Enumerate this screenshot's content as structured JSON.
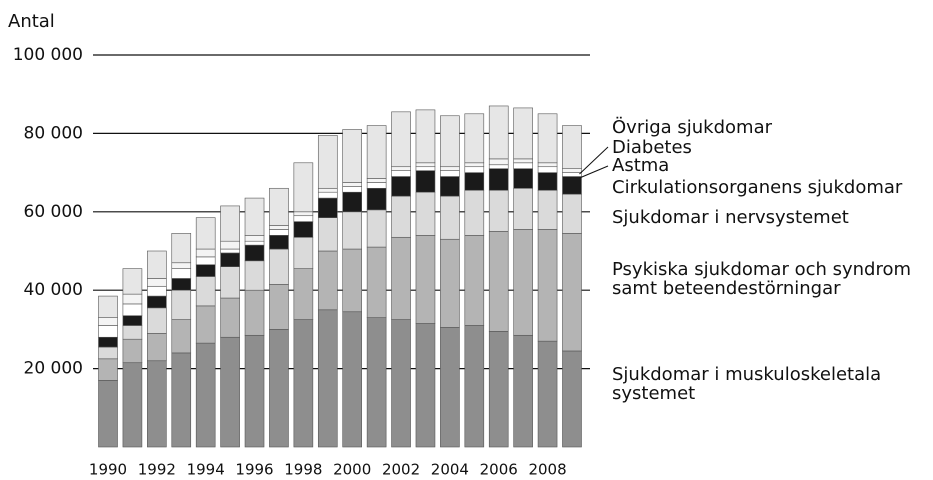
{
  "chart_data": {
    "type": "bar",
    "stacked": true,
    "y_label": "Antal",
    "categories": [
      "1990",
      null,
      "1992",
      null,
      "1994",
      null,
      "1996",
      null,
      "1998",
      null,
      "2000",
      null,
      "2002",
      null,
      "2004",
      null,
      "2006",
      null,
      "2008",
      null
    ],
    "series": [
      {
        "name": "Sjukdomar i muskuloskeletala systemet",
        "color": "#8e8e8e",
        "values": [
          17000,
          21500,
          22000,
          24000,
          26500,
          28000,
          28500,
          30000,
          32500,
          35000,
          34500,
          33000,
          32500,
          31500,
          30500,
          31000,
          29500,
          28500,
          27000,
          24500
        ]
      },
      {
        "name": "Psykiska sjukdomar och syndrom samt beteendestörningar",
        "color": "#b4b4b4",
        "values": [
          5500,
          6000,
          7000,
          8500,
          9500,
          10000,
          11500,
          11500,
          13000,
          15000,
          16000,
          18000,
          21000,
          22500,
          22500,
          23000,
          25500,
          27000,
          28500,
          30000
        ]
      },
      {
        "name": "Sjukdomar i nervsystemet",
        "color": "#dadada",
        "values": [
          3000,
          3500,
          6500,
          7500,
          7500,
          8000,
          7500,
          9000,
          8000,
          8500,
          9500,
          9500,
          10500,
          11000,
          11000,
          11500,
          10500,
          10500,
          10000,
          10000
        ]
      },
      {
        "name": "Cirkulationsorganens sjukdomar",
        "color": "#1a1a1a",
        "values": [
          2500,
          2500,
          3000,
          3000,
          3000,
          3500,
          4000,
          3500,
          4000,
          5000,
          5000,
          5500,
          5000,
          5500,
          5000,
          4500,
          5500,
          5000,
          4500,
          4500
        ]
      },
      {
        "name": "Astma",
        "color": "#ffffff",
        "values": [
          3000,
          3000,
          2500,
          2500,
          2000,
          1000,
          1000,
          1500,
          1500,
          1500,
          1500,
          1500,
          1500,
          1000,
          1500,
          1500,
          1000,
          1500,
          1500,
          1000
        ]
      },
      {
        "name": "Diabetes",
        "color": "#f4f4f4",
        "values": [
          2000,
          2500,
          2000,
          1500,
          2000,
          2000,
          1500,
          1000,
          1000,
          1000,
          1000,
          1000,
          1000,
          1000,
          1000,
          1000,
          1500,
          1000,
          1000,
          1000
        ]
      },
      {
        "name": "Övriga sjukdomar",
        "color": "#e6e6e6",
        "values": [
          5500,
          6500,
          7000,
          7500,
          8000,
          9000,
          9500,
          9500,
          12500,
          13500,
          13500,
          13500,
          14000,
          13500,
          13000,
          12500,
          13500,
          13000,
          12500,
          11000
        ]
      }
    ],
    "ylim": [
      0,
      100000
    ],
    "yticks": [
      {
        "value": 20000,
        "label": "20 000"
      },
      {
        "value": 40000,
        "label": "40 000"
      },
      {
        "value": 60000,
        "label": "60 000"
      },
      {
        "value": 80000,
        "label": "80 000"
      },
      {
        "value": 100000,
        "label": "100 000"
      }
    ],
    "grid": true
  }
}
